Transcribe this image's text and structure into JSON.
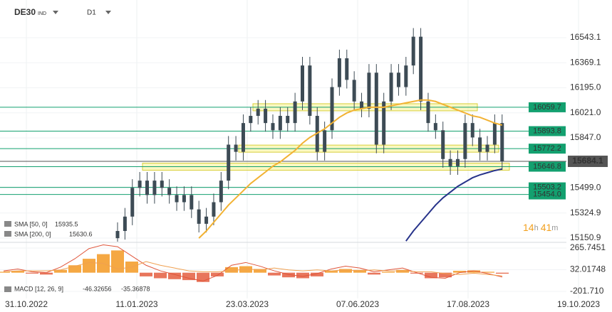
{
  "symbol": "DE30",
  "instrument_type": "IND",
  "timeframe": "D1",
  "countdown": [
    "14",
    "h",
    "41",
    "m"
  ],
  "x_axis": [
    "31.10.2022",
    "11.01.2023",
    "23.03.2023",
    "07.06.2023",
    "17.08.2023",
    "19.10.2023"
  ],
  "chart_data": [
    {
      "type": "candlestick",
      "open": [
        15150,
        15200,
        15300,
        15500,
        15550,
        15450,
        15550,
        15500,
        15450,
        15400,
        15450,
        15350,
        15250,
        15300,
        15400,
        15550,
        15800,
        15750,
        15950,
        16000,
        16050,
        15950,
        15900,
        16000,
        15950,
        16100,
        16350,
        16000,
        15750,
        15900,
        16200,
        16400,
        16250,
        16100,
        16050,
        16300,
        15800,
        16100,
        16300,
        16200,
        16350,
        16550,
        16100,
        15950,
        15900,
        15700,
        15650,
        15700,
        15950,
        15850,
        15750,
        15800,
        15950
      ],
      "high": [
        15260,
        15360,
        15560,
        15610,
        15610,
        15610,
        15610,
        15560,
        15510,
        15510,
        15510,
        15410,
        15360,
        15460,
        15610,
        15860,
        15860,
        16010,
        16060,
        16110,
        16110,
        16010,
        16060,
        16060,
        16160,
        16410,
        16410,
        16060,
        15960,
        16260,
        16460,
        16460,
        16310,
        16160,
        16360,
        16360,
        16160,
        16360,
        16360,
        16410,
        16610,
        16610,
        16160,
        16010,
        15960,
        15760,
        15760,
        16010,
        16010,
        15910,
        15860,
        16010,
        16010
      ],
      "low": [
        15090,
        15140,
        15240,
        15440,
        15390,
        15390,
        15440,
        15390,
        15340,
        15340,
        15290,
        15190,
        15190,
        15240,
        15340,
        15490,
        15690,
        15690,
        15890,
        15940,
        15890,
        15840,
        15840,
        15890,
        15890,
        16040,
        15940,
        15690,
        15690,
        15840,
        16140,
        16190,
        16040,
        15990,
        15990,
        15740,
        15740,
        16040,
        16140,
        16140,
        16290,
        16040,
        15890,
        15840,
        15640,
        15590,
        15590,
        15640,
        15790,
        15690,
        15690,
        15740,
        15624
      ],
      "close": [
        15200,
        15300,
        15500,
        15550,
        15450,
        15550,
        15500,
        15450,
        15400,
        15450,
        15350,
        15250,
        15300,
        15400,
        15550,
        15800,
        15750,
        15950,
        16000,
        16050,
        15950,
        15900,
        16000,
        15950,
        16100,
        16350,
        16000,
        15750,
        15900,
        16200,
        16400,
        16250,
        16100,
        16050,
        16300,
        15800,
        16100,
        16300,
        16200,
        16350,
        16550,
        16100,
        15950,
        15900,
        15700,
        15650,
        15700,
        15950,
        15850,
        15750,
        15800,
        15950,
        15684.1
      ],
      "color": "#3d4b55",
      "series": [
        {
          "name": "SMA [50, 0]",
          "color": "#f2b233",
          "values": [
            null,
            null,
            null,
            null,
            null,
            null,
            null,
            null,
            null,
            null,
            null,
            15150,
            15200,
            15260,
            15320,
            15380,
            15430,
            15480,
            15530,
            15570,
            15610,
            15650,
            15680,
            15720,
            15760,
            15810,
            15850,
            15880,
            15910,
            15950,
            15990,
            16020,
            16040,
            16050,
            16060,
            16060,
            16060,
            16070,
            16080,
            16090,
            16100,
            16110,
            16110,
            16100,
            16080,
            16060,
            16040,
            16020,
            16000,
            15990,
            15970,
            15950,
            15935.5
          ]
        },
        {
          "name": "SMA [200, 0]",
          "color": "#27338a",
          "values": [
            null,
            null,
            null,
            null,
            null,
            null,
            null,
            null,
            null,
            null,
            null,
            null,
            null,
            null,
            null,
            null,
            null,
            null,
            null,
            null,
            null,
            null,
            null,
            null,
            null,
            null,
            null,
            null,
            null,
            null,
            null,
            null,
            null,
            null,
            null,
            null,
            null,
            null,
            null,
            15130,
            15200,
            15260,
            15320,
            15380,
            15430,
            15470,
            15510,
            15540,
            15570,
            15590,
            15605,
            15620,
            15630.6
          ]
        }
      ],
      "levels": [
        16059.7,
        15893.8,
        15772.2,
        15646.8,
        15503.2,
        {
          "value": 15454,
          "label": "15454.0"
        }
      ],
      "level_color": "#13a06f",
      "current_price": 15684.1,
      "ylim": [
        15126,
        16805
      ],
      "yticks": [
        16543.1,
        16369.1,
        {
          "value": 16195,
          "label": "16195.0"
        },
        {
          "value": 16021,
          "label": "16021.0"
        },
        {
          "value": 15847,
          "label": "15847.0"
        },
        {
          "value": 15499,
          "label": "15499.0"
        },
        15324.9,
        15150.9
      ]
    },
    {
      "type": "macd",
      "title": "MACD [12, 26, 9]",
      "histogram": [
        10,
        20,
        -10,
        -20,
        30,
        80,
        150,
        200,
        240,
        120,
        -40,
        -60,
        -70,
        -80,
        -100,
        -40,
        60,
        70,
        40,
        -30,
        -50,
        -60,
        -40,
        20,
        40,
        30,
        -20,
        10,
        30,
        -10,
        -60,
        -50,
        20,
        25,
        10,
        -11
      ],
      "series": [
        {
          "color": "#e0553a",
          "values": [
            20,
            40,
            10,
            0,
            60,
            150,
            260,
            300,
            280,
            180,
            80,
            20,
            -20,
            -60,
            -90,
            -30,
            80,
            110,
            70,
            20,
            -20,
            -40,
            -10,
            40,
            70,
            50,
            10,
            30,
            50,
            0,
            -50,
            -60,
            0,
            20,
            -10,
            -46.32656
          ]
        },
        {
          "color": "#f0a050",
          "values": [
            10,
            20,
            20,
            20,
            30,
            70,
            110,
            100,
            40,
            60,
            120,
            80,
            50,
            20,
            10,
            10,
            20,
            40,
            30,
            50,
            30,
            20,
            30,
            20,
            30,
            20,
            30,
            20,
            20,
            10,
            10,
            -10,
            -20,
            -5,
            -20,
            -35.36878
          ]
        }
      ],
      "ylim": [
        -278.3,
        319.4
      ],
      "yticks": [
        265.7451,
        32.01748,
        {
          "value": -201.71,
          "label": "-201.710"
        }
      ]
    }
  ]
}
